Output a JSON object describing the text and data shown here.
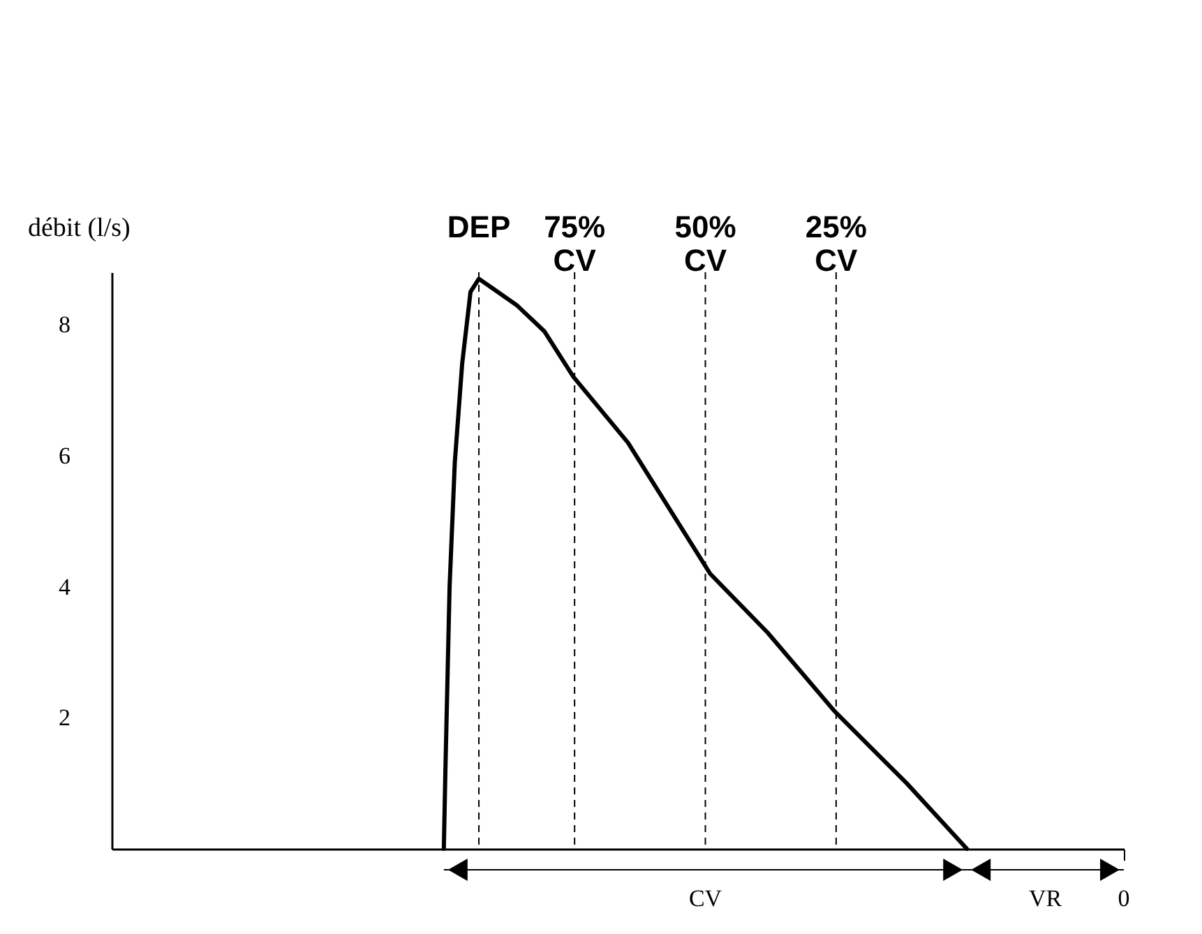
{
  "chart_data": {
    "type": "line",
    "ylabel": "débit (l/s)",
    "color": "#000000",
    "x": [
      100,
      99.7,
      98.9,
      97.9,
      96.5,
      94.9,
      93.3,
      91.5,
      86.1,
      80.8,
      75.2,
      64.8,
      49.1,
      38.1,
      25.3,
      11.5,
      0
    ],
    "values": [
      0,
      1.2,
      4.0,
      5.9,
      7.4,
      8.5,
      8.7,
      8.6,
      8.3,
      7.9,
      7.2,
      6.2,
      4.2,
      3.3,
      2.1,
      1.0,
      0
    ],
    "xlim": [
      163.5,
      -30
    ],
    "ylim": [
      0,
      8.8
    ],
    "yticks": [
      2,
      4,
      6,
      8
    ],
    "ref_lines": [
      {
        "axis": "x",
        "value": 93.3,
        "label": "DEP",
        "line_style": "dashed"
      },
      {
        "axis": "x",
        "value": 75,
        "label": "75% CV",
        "line_style": "dashed"
      },
      {
        "axis": "x",
        "value": 50,
        "label": "50% CV",
        "line_style": "dashed"
      },
      {
        "axis": "x",
        "value": 25,
        "label": "25% CV",
        "line_style": "dashed"
      }
    ],
    "annotations": [
      "0",
      "CV",
      "VR"
    ],
    "grid": false,
    "marker": "none",
    "line_style": "solid"
  }
}
